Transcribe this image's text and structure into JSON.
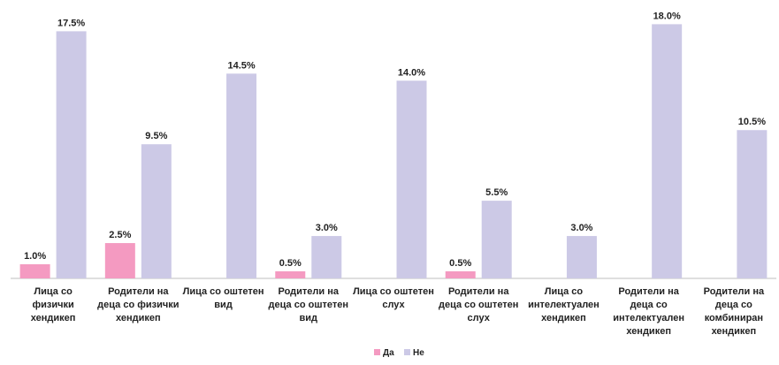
{
  "chart_data": {
    "type": "bar",
    "categories": [
      [
        "Лица со",
        "физички",
        "хендикеп"
      ],
      [
        "Родители на",
        "деца со физички",
        "хендикеп"
      ],
      [
        "Лица со оштетен",
        "вид"
      ],
      [
        "Родители на",
        "деца со оштетен",
        "вид"
      ],
      [
        "Лица со оштетен",
        "слух"
      ],
      [
        "Родители на",
        "деца со оштетен",
        "слух"
      ],
      [
        "Лица со",
        "интелектуален",
        "хендикеп"
      ],
      [
        "Родители на",
        "деца со",
        "интелектуален",
        "хендикеп"
      ],
      [
        "Родители на",
        "деца со",
        "комбиниран",
        "хендикеп"
      ]
    ],
    "series": [
      {
        "name": "Да",
        "color": "#f49ac1",
        "values": [
          1.0,
          2.5,
          null,
          0.5,
          null,
          0.5,
          null,
          null,
          null
        ],
        "labels": [
          "1.0%",
          "2.5%",
          "",
          "0.5%",
          "",
          "0.5%",
          "",
          "",
          ""
        ]
      },
      {
        "name": "Не",
        "color": "#ccc9e6",
        "values": [
          17.5,
          9.5,
          14.5,
          3.0,
          14.0,
          5.5,
          3.0,
          18.0,
          10.5
        ],
        "labels": [
          "17.5%",
          "9.5%",
          "14.5%",
          "3.0%",
          "14.0%",
          "5.5%",
          "3.0%",
          "18.0%",
          "10.5%"
        ]
      }
    ],
    "ylim": [
      0,
      18.9
    ],
    "grid": false,
    "legend": "bottom-center",
    "title": "",
    "xlabel": "",
    "ylabel": ""
  }
}
